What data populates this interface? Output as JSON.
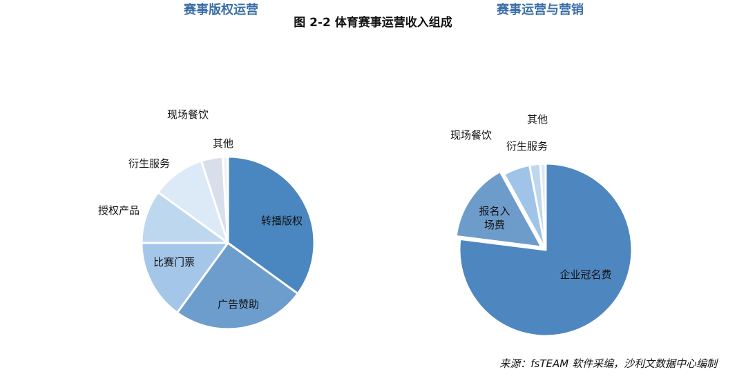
{
  "title": "图 2-2 体育赛事运营收入组成",
  "source": "来源：fsTEAM 软件采编，沙利文数据中心编制",
  "chart_data": [
    {
      "type": "pie",
      "title": "赛事版权运营",
      "categories": [
        "转播版权",
        "广告赞助",
        "比赛门票",
        "授权产品",
        "衍生服务",
        "其他",
        "现场餐饮"
      ],
      "values": [
        35,
        25,
        15,
        10,
        10,
        4,
        1
      ],
      "colors": [
        "#4a86bf",
        "#6c9dcc",
        "#a3c6e9",
        "#bdd7ee",
        "#dce9f6",
        "#d8dfeb",
        "#f0f2f5"
      ]
    },
    {
      "type": "pie",
      "title": "赛事运营与营销",
      "categories": [
        "企业冠名费",
        "报名入场费",
        "现场餐饮",
        "衍生服务",
        "其他"
      ],
      "values": [
        77,
        15,
        5,
        2,
        1
      ],
      "colors": [
        "#4e87bf",
        "#6d9ccb",
        "#9fc4e8",
        "#bdd7ee",
        "#dde9f5"
      ]
    }
  ]
}
